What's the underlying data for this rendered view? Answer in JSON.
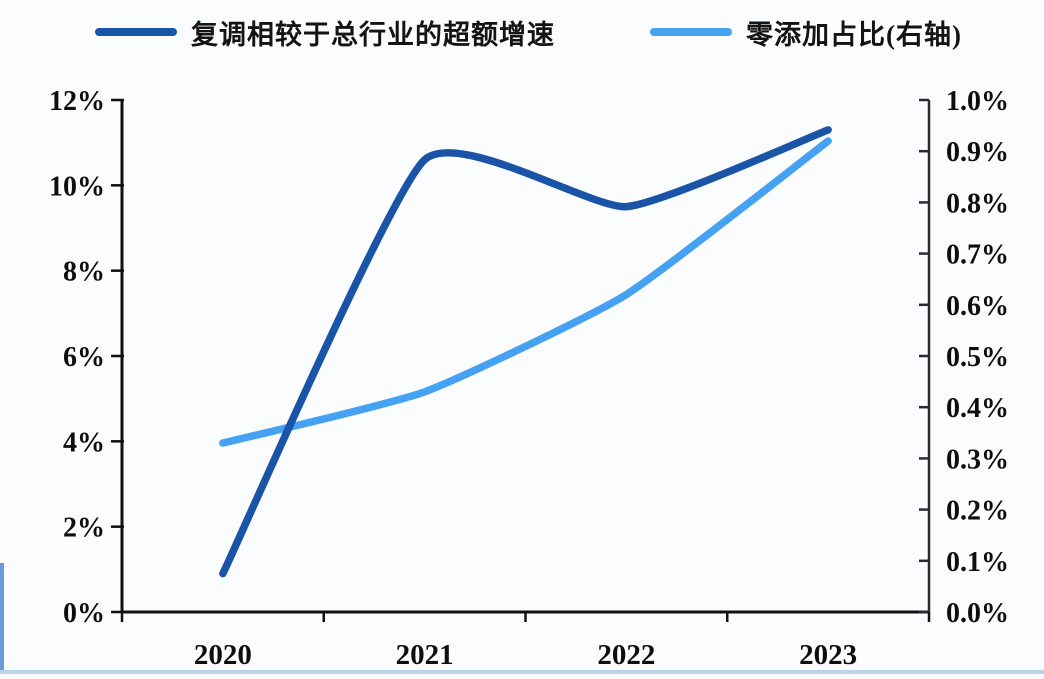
{
  "chart_data": {
    "type": "line",
    "smooth": true,
    "grid": false,
    "legend_position": "top",
    "categories": [
      "2020",
      "2021",
      "2022",
      "2023"
    ],
    "series": [
      {
        "name": "复调相较于总行业的超额增速",
        "axis": "left",
        "color": "#1a54a6",
        "values": [
          0.9,
          10.6,
          9.5,
          11.3
        ]
      },
      {
        "name": "零添加占比(右轴)",
        "axis": "right",
        "color": "#45a1f1",
        "values": [
          0.33,
          0.43,
          0.62,
          0.92
        ]
      }
    ],
    "left_axis": {
      "min": 0,
      "max": 12,
      "step": 2,
      "ticks": [
        "0%",
        "2%",
        "4%",
        "6%",
        "8%",
        "10%",
        "12%"
      ]
    },
    "right_axis": {
      "min": 0.0,
      "max": 1.0,
      "step": 0.1,
      "ticks": [
        "0.0%",
        "0.1%",
        "0.2%",
        "0.3%",
        "0.4%",
        "0.5%",
        "0.6%",
        "0.7%",
        "0.8%",
        "0.9%",
        "1.0%"
      ]
    },
    "axis_color": "#111111",
    "right_axis_color": "#2a2a34"
  },
  "decor": {
    "edge_left_color": "#6b9bd8",
    "edge_bottom_color": "#b9d3ef"
  }
}
